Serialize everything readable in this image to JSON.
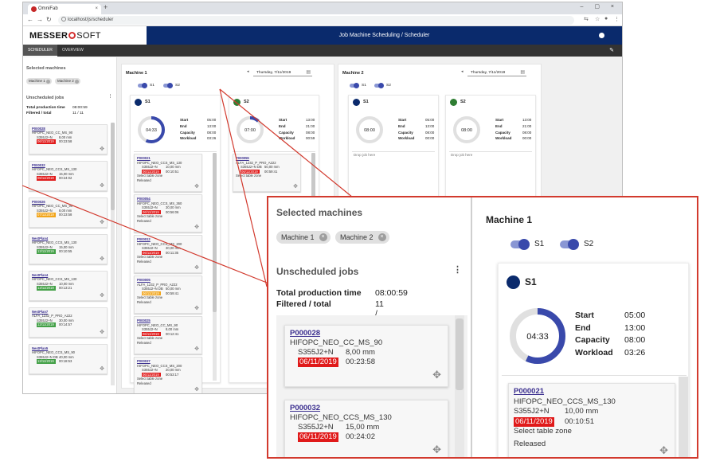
{
  "browser": {
    "tab_title": "OmniFab",
    "tab_close": "×",
    "new_tab": "+",
    "window_controls": "–  ▢  ×",
    "url": "localhost/js/scheduler",
    "back": "←",
    "forward": "→",
    "reload": "↻"
  },
  "app": {
    "logo_left": "MESSER",
    "logo_right": "SOFT",
    "title": "Job Machine Scheduling / Scheduler",
    "tabs": [
      "SCHEDULER",
      "OVERVIEW"
    ]
  },
  "left_panel": {
    "selected_machines_title": "Selected machines",
    "chips": [
      "Machine 1",
      "Machine 2"
    ],
    "unscheduled_title": "Unscheduled jobs",
    "menu_icon": "⋮",
    "total_production_label": "Total production time",
    "total_production_value": "08:00:59",
    "filtered_label": "Filtered / total",
    "filtered_value": "11 / 11",
    "jobs": [
      {
        "id": "P000028",
        "program": "HIFOPC_NEO_CC_MS_90",
        "material": "S355J2+N",
        "thickness": "8,00 mm",
        "date": "06/11/2019",
        "time": "00:23:58",
        "status": "red"
      },
      {
        "id": "P000032",
        "program": "HIFOPC_NEO_CCS_MS_130",
        "material": "S355J2+N",
        "thickness": "15,00 mm",
        "date": "06/11/2019",
        "time": "00:24:02",
        "status": "red"
      },
      {
        "id": "P000026",
        "program": "HIFOPC_NEO_CC_MS_90",
        "material": "S355J2+N",
        "thickness": "8,00 mm",
        "date": "07/11/2019",
        "time": "00:23:58",
        "status": "amber"
      },
      {
        "id": "NestPlan4",
        "program": "HIFOPC_NEO_CCS_MS_130",
        "material": "S355J2+N",
        "thickness": "15,00 mm",
        "date": "13/11/2019",
        "time": "00:10:55",
        "status": "green"
      },
      {
        "id": "NestPlan4",
        "program": "HIFOPC_NEO_CCS_MS_130",
        "material": "S355J2+N",
        "thickness": "10,00 mm",
        "date": "13/11/2019",
        "time": "00:13:21",
        "status": "green"
      },
      {
        "id": "NestPlan7",
        "program": "ALFA_1232_P_PRO_A222",
        "material": "S355J2+N",
        "thickness": "30,00 mm",
        "date": "13/11/2019",
        "time": "00:14:57",
        "status": "green"
      },
      {
        "id": "NestPlan5",
        "program": "HIFOPC_NEO_CCS_MS_90",
        "material": "S355J2+N DB",
        "thickness": "40,00 mm",
        "date": "13/11/2019",
        "time": "00:18:53",
        "status": "green"
      }
    ]
  },
  "machines": [
    {
      "title": "Machine 1",
      "date": "Thursday, 7/11/2019",
      "toggles": [
        "S1",
        "S2"
      ],
      "shifts": [
        {
          "name": "S1",
          "color": "#0a2a6c",
          "dial": "04:33",
          "fill": 0.57,
          "start": "05:00",
          "end": "13:00",
          "capacity": "08:00",
          "workload": "03:26",
          "jobs": [
            {
              "id": "P000021",
              "program": "HIFOPC_NEO_CCS_MS_130",
              "material": "S355J2+N",
              "thickness": "10,00 mm",
              "date": "06/11/2019",
              "time": "00:10:51",
              "note": "Select table zone",
              "state": "Released",
              "status": "red"
            },
            {
              "id": "P000054",
              "program": "HIFOPC_NEO_CCS_MS_360",
              "material": "S355J2+N",
              "thickness": "30,00 mm",
              "date": "06/11/2019",
              "time": "00:56:06",
              "note": "Select table zone",
              "state": "Released",
              "status": "red"
            },
            {
              "id": "P000012",
              "program": "HIFOPC_NEO_CCS_MS_200",
              "material": "S355J2+N",
              "thickness": "30,00 mm",
              "date": "06/11/2019",
              "time": "00:11:35",
              "note": "Select table zone",
              "state": "Released",
              "status": "red"
            },
            {
              "id": "P000005",
              "program": "ALFA_1232_P_PRO_A222",
              "material": "S355J2+N DB",
              "thickness": "50,00 mm",
              "date": "06/11/2019",
              "time": "00:59:41",
              "note": "Select table zone",
              "state": "Released",
              "status": "amber"
            },
            {
              "id": "P000025",
              "program": "HIFOPC_NEO_CC_MS_90",
              "material": "S355J2+N",
              "thickness": "8,00 mm",
              "date": "06/11/2019",
              "time": "00:12:41",
              "note": "Select table zone",
              "state": "Released",
              "status": "red"
            },
            {
              "id": "P000037",
              "program": "HIFOPC_NEO_CCS_MS_200",
              "material": "S355J2+N",
              "thickness": "20,00 mm",
              "date": "06/11/2019",
              "time": "00:53:17",
              "note": "Select table zone",
              "state": "Released",
              "status": "red"
            }
          ]
        },
        {
          "name": "S2",
          "color": "#2e7d32",
          "dial": "07:00",
          "fill": 0.12,
          "start": "13:00",
          "end": "21:00",
          "capacity": "08:00",
          "workload": "00:59",
          "jobs": [
            {
              "id": "P000055",
              "program": "ALFA_1232_P_PRO_A222",
              "material": "S355J2+N DB",
              "thickness": "50,00 mm",
              "date": "06/11/2019",
              "time": "00:59:41",
              "note": "Select table zone",
              "state": "",
              "status": "red"
            }
          ]
        }
      ]
    },
    {
      "title": "Machine 2",
      "date": "Thursday, 7/11/2019",
      "toggles": [
        "S1",
        "S2"
      ],
      "shifts": [
        {
          "name": "S1",
          "color": "#0a2a6c",
          "dial": "08:00",
          "fill": 0,
          "start": "05:00",
          "end": "13:00",
          "capacity": "08:00",
          "workload": "00:00",
          "drop": "Drop job here",
          "jobs": []
        },
        {
          "name": "S2",
          "color": "#2e7d32",
          "dial": "08:00",
          "fill": 0,
          "start": "13:00",
          "end": "21:00",
          "capacity": "08:00",
          "workload": "00:00",
          "drop": "Drop job here",
          "jobs": []
        }
      ]
    }
  ],
  "stat_labels": {
    "start": "Start",
    "end": "End",
    "capacity": "Capacity",
    "workload": "Workload"
  },
  "zoom": {
    "selected_machines_title": "Selected machines",
    "chips": [
      "Machine 1",
      "Machine 2"
    ],
    "unscheduled_title": "Unscheduled jobs",
    "menu_icon": "⋮",
    "total_production_label": "Total production time",
    "total_production_value": "08:00:59",
    "filtered_label": "Filtered / total",
    "filtered_value": "11 / 11",
    "jobs": [
      {
        "id": "P000028",
        "program": "HIFOPC_NEO_CC_MS_90",
        "material": "S355J2+N",
        "thickness": "8,00 mm",
        "date": "06/11/2019",
        "time": "00:23:58"
      },
      {
        "id": "P000032",
        "program": "HIFOPC_NEO_CCS_MS_130",
        "material": "S355J2+N",
        "thickness": "15,00 mm",
        "date": "06/11/2019",
        "time": "00:24:02"
      }
    ],
    "machine_title": "Machine 1",
    "toggles": [
      "S1",
      "S2"
    ],
    "shift": {
      "name": "S1",
      "dial": "04:33",
      "fill": 0.57,
      "start": "05:00",
      "end": "13:00",
      "capacity": "08:00",
      "workload": "03:26"
    },
    "shift_job": {
      "id": "P000021",
      "program": "HIFOPC_NEO_CCS_MS_130",
      "material": "S355J2+N",
      "thickness": "10,00 mm",
      "date": "06/11/2019",
      "time": "00:10:51",
      "note": "Select table zone",
      "state": "Released"
    }
  },
  "colors": {
    "accent": "#3949ab",
    "header": "#0a2a6c",
    "callout": "#d23a2e",
    "late": "#e01a1a",
    "warn": "#f2a51a",
    "ok": "#43a047"
  },
  "icons": {
    "move": "move-icon",
    "calendar": "calendar-icon",
    "info": "info-icon",
    "edit": "edit-icon"
  }
}
